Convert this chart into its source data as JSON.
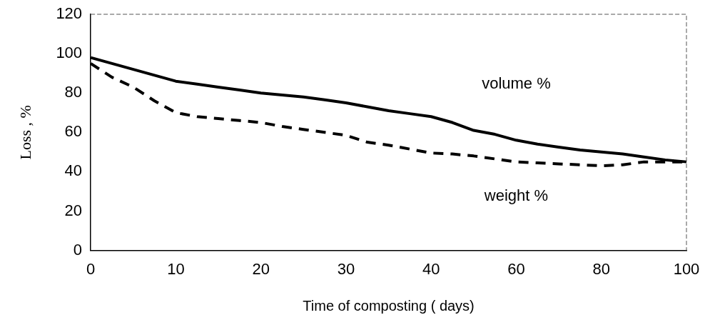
{
  "chart_data": {
    "type": "line",
    "xlabel": "Time of composting ( days)",
    "ylabel": "Loss , %",
    "categories": [
      "0",
      null,
      null,
      null,
      "10",
      null,
      null,
      null,
      "20",
      null,
      null,
      null,
      "30",
      null,
      null,
      null,
      "40",
      null,
      null,
      null,
      "60",
      null,
      null,
      null,
      "80",
      null,
      null,
      null,
      "100"
    ],
    "series": [
      {
        "name": "volume %",
        "color": "#000000",
        "line_style": "solid",
        "values": [
          98,
          95,
          92,
          89,
          86,
          84.5,
          83,
          81.5,
          80,
          79,
          78,
          76.5,
          75,
          73,
          71,
          69.5,
          68,
          65,
          61,
          59,
          56,
          54,
          52.5,
          51,
          50,
          49,
          47.5,
          46,
          45
        ]
      },
      {
        "name": "weight %",
        "color": "#000000",
        "line_style": "dashed",
        "values": [
          95,
          88,
          83,
          76,
          70,
          68,
          67,
          66,
          65,
          63,
          61.5,
          60,
          58.5,
          55,
          53.5,
          51.5,
          49.5,
          49,
          48,
          46.5,
          45,
          44.5,
          44,
          43.5,
          43,
          43.5,
          45,
          45,
          45
        ]
      }
    ],
    "ylim": [
      0,
      120
    ],
    "yticks": [
      0,
      20,
      40,
      60,
      80,
      100,
      120
    ],
    "grid": false,
    "legend": false,
    "marker": "none"
  }
}
